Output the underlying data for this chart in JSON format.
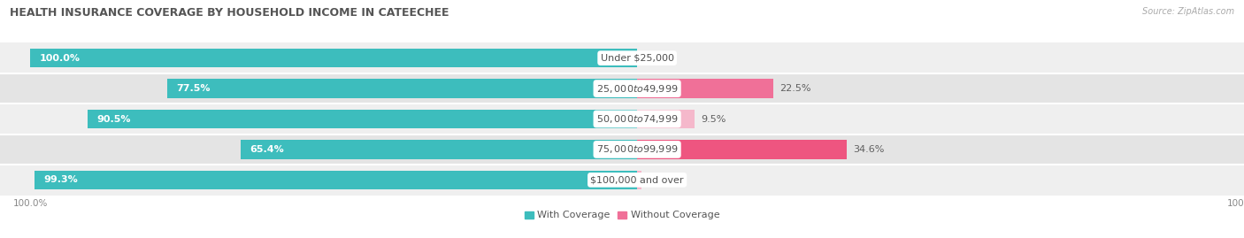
{
  "title": "HEALTH INSURANCE COVERAGE BY HOUSEHOLD INCOME IN CATEECHEE",
  "source": "Source: ZipAtlas.com",
  "categories": [
    "Under $25,000",
    "$25,000 to $49,999",
    "$50,000 to $74,999",
    "$75,000 to $99,999",
    "$100,000 and over"
  ],
  "with_coverage": [
    100.0,
    77.5,
    90.5,
    65.4,
    99.3
  ],
  "without_coverage": [
    0.0,
    22.5,
    9.5,
    34.6,
    0.72
  ],
  "color_with": "#3dbdbd",
  "color_without": "#f07098",
  "color_without_row4": "#f0a0b8",
  "row_bg_even": "#efefef",
  "row_bg_odd": "#e4e4e4",
  "title_fontsize": 9,
  "label_fontsize": 8,
  "value_fontsize": 8,
  "legend_fontsize": 8,
  "axis_tick_fontsize": 7.5,
  "figsize": [
    14.06,
    2.69
  ],
  "dpi": 100
}
